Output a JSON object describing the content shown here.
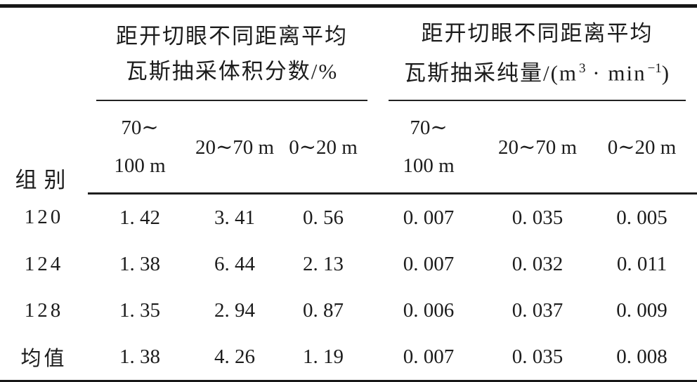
{
  "meta": {
    "background_color": "#ffffff",
    "text_color": "#1c1c1c",
    "rule_color": "#171717"
  },
  "table": {
    "corner_label": "组别",
    "left_group": {
      "title_line1": "距开切眼不同距离平均",
      "title_line2": "瓦斯抽采体积分数/%",
      "sub": {
        "far_l1": "70∼",
        "far_l2": "100 m",
        "mid": "20∼70 m",
        "near": "0∼20 m"
      }
    },
    "right_group": {
      "title_line1": "距开切眼不同距离平均",
      "title_line2_pre": "瓦斯抽采纯量/(m",
      "exponent": "3",
      "title_line2_mid": " · min",
      "exponent_neg": "−1",
      "title_line2_post": ")",
      "sub": {
        "far_l1": "70∼",
        "far_l2": "100 m",
        "mid": "20∼70 m",
        "near": "0∼20 m"
      }
    },
    "rows": [
      {
        "group": "120",
        "v1": "1. 42",
        "v2": "3. 41",
        "v3": "0. 56",
        "v4": "0. 007",
        "v5": "0. 035",
        "v6": "0. 005"
      },
      {
        "group": "124",
        "v1": "1. 38",
        "v2": "6. 44",
        "v3": "2. 13",
        "v4": "0. 007",
        "v5": "0. 032",
        "v6": "0. 011"
      },
      {
        "group": "128",
        "v1": "1. 35",
        "v2": "2. 94",
        "v3": "0. 87",
        "v4": "0. 006",
        "v5": "0. 037",
        "v6": "0. 009"
      },
      {
        "group": "均值",
        "v1": "1. 38",
        "v2": "4. 26",
        "v3": "1. 19",
        "v4": "0. 007",
        "v5": "0. 035",
        "v6": "0. 008"
      }
    ]
  }
}
